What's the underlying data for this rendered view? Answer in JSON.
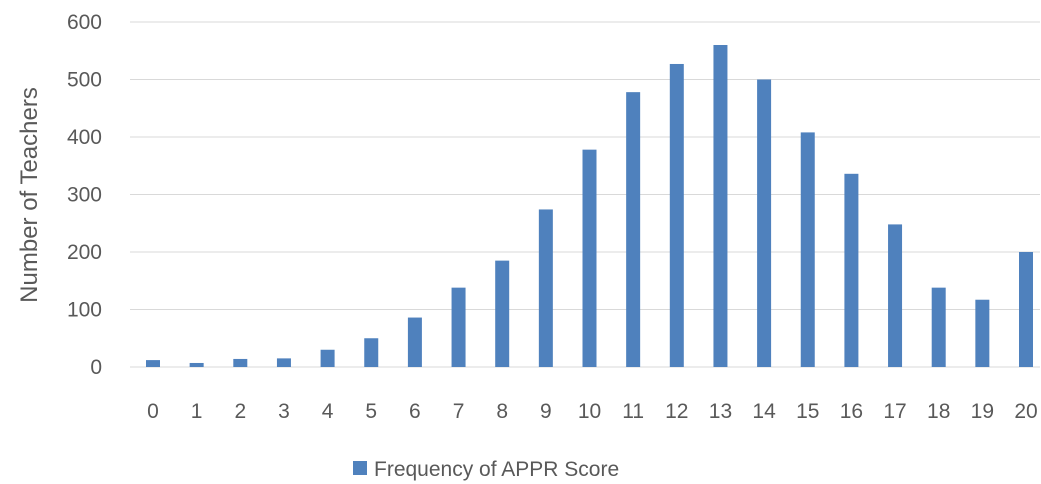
{
  "chart_data": {
    "type": "bar",
    "ylabel": "Number of Teachers",
    "xlabel": "",
    "ylim": [
      0,
      600
    ],
    "yticks": [
      0,
      100,
      200,
      300,
      400,
      500,
      600
    ],
    "grid": true,
    "legend_position": "bottom",
    "categories": [
      "0",
      "1",
      "2",
      "3",
      "4",
      "5",
      "6",
      "7",
      "8",
      "9",
      "10",
      "11",
      "12",
      "13",
      "14",
      "15",
      "16",
      "17",
      "18",
      "19",
      "20"
    ],
    "series": [
      {
        "name": "Frequency of APPR Score",
        "color": "#4f81bd",
        "values": [
          12,
          7,
          14,
          15,
          30,
          50,
          86,
          138,
          185,
          274,
          378,
          478,
          527,
          560,
          500,
          408,
          336,
          248,
          138,
          117,
          200
        ]
      }
    ]
  }
}
